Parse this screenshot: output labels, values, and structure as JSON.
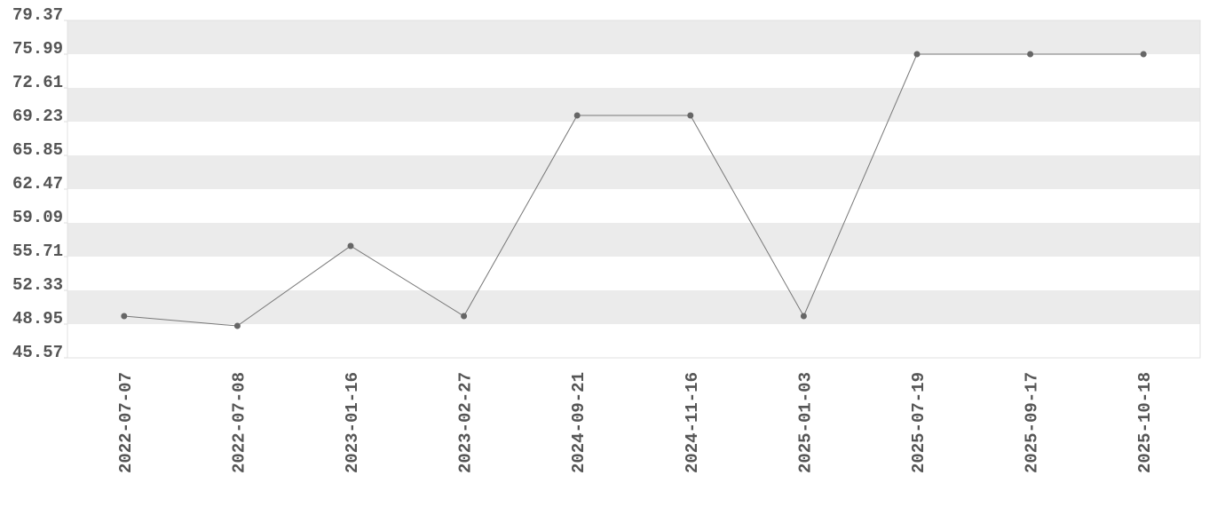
{
  "chart_data": {
    "type": "line",
    "categories": [
      "2022-07-07",
      "2022-07-08",
      "2023-01-16",
      "2023-02-27",
      "2024-09-21",
      "2024-11-16",
      "2025-01-03",
      "2025-07-19",
      "2025-09-17",
      "2025-10-18"
    ],
    "values": [
      49.75,
      48.77,
      56.78,
      49.75,
      69.85,
      69.85,
      49.75,
      75.99,
      75.99,
      75.99
    ],
    "color": "#777777",
    "ylim": [
      45.57,
      79.37
    ],
    "yticks": [
      45.57,
      48.95,
      52.33,
      55.71,
      59.09,
      62.47,
      65.85,
      69.23,
      72.61,
      75.99,
      79.37
    ],
    "grid": "alternating-bands"
  }
}
